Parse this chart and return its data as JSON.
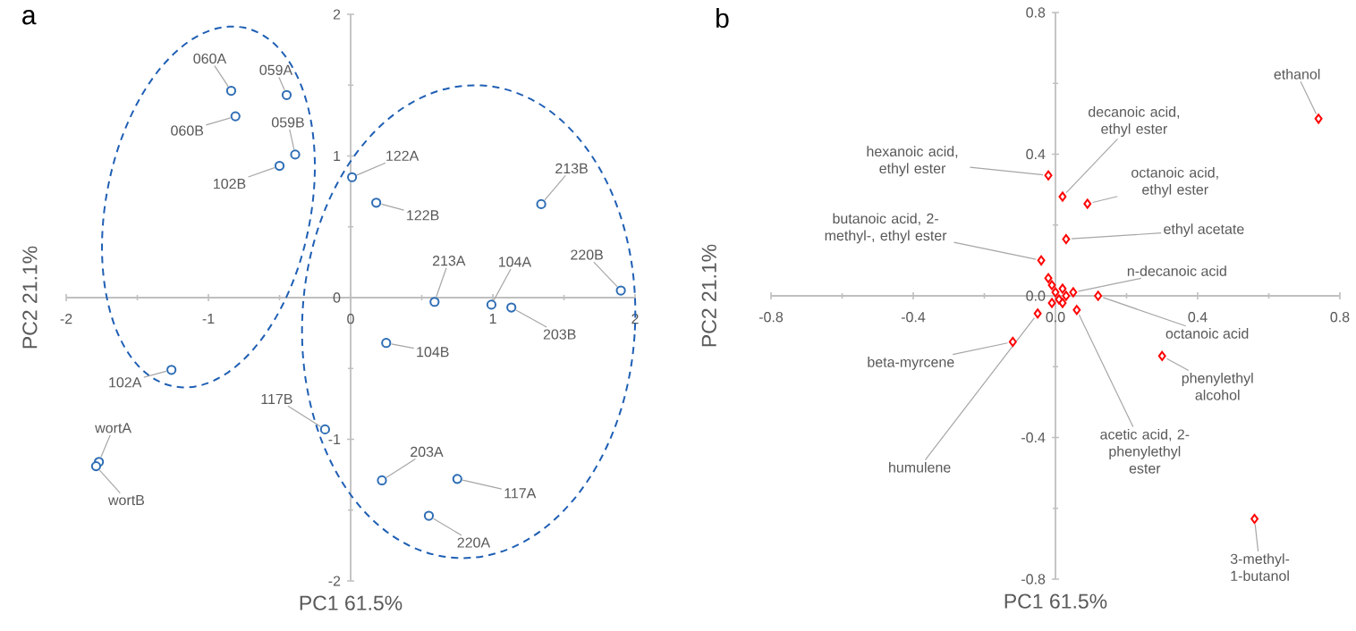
{
  "chart_data": [
    {
      "type": "scatter",
      "title": "a",
      "xlabel": "PC1 61.5%",
      "ylabel": "PC2 21.1%",
      "xlim": [
        -2,
        2
      ],
      "ylim": [
        -2,
        2
      ],
      "xticks": [
        -2,
        -1,
        0,
        1,
        2
      ],
      "yticks": [
        -2,
        -1,
        0,
        1,
        2
      ],
      "marker": "circle",
      "series": [
        {
          "color": "#2e6db4",
          "x": [
            -0.84,
            -0.45,
            -0.81,
            -0.39,
            -0.5,
            0.01,
            0.18,
            1.34,
            0.59,
            0.99,
            1.13,
            1.9,
            0.25,
            -1.26,
            -0.18,
            -1.77,
            -1.79,
            0.22,
            0.75,
            0.55
          ],
          "values": [
            1.46,
            1.43,
            1.28,
            1.01,
            0.93,
            0.85,
            0.67,
            0.66,
            -0.03,
            -0.05,
            -0.07,
            0.05,
            -0.32,
            -0.51,
            -0.93,
            -1.16,
            -1.19,
            -1.29,
            -1.28,
            -1.54
          ]
        }
      ],
      "annotations": [
        {
          "text": "060A",
          "x": -0.84,
          "y": 1.46
        },
        {
          "text": "059A",
          "x": -0.45,
          "y": 1.43
        },
        {
          "text": "060B",
          "x": -0.81,
          "y": 1.28
        },
        {
          "text": "059B",
          "x": -0.39,
          "y": 1.01
        },
        {
          "text": "102B",
          "x": -0.5,
          "y": 0.93
        },
        {
          "text": "122A",
          "x": 0.01,
          "y": 0.85
        },
        {
          "text": "122B",
          "x": 0.18,
          "y": 0.67
        },
        {
          "text": "213B",
          "x": 1.34,
          "y": 0.66
        },
        {
          "text": "213A",
          "x": 0.59,
          "y": -0.03
        },
        {
          "text": "104A",
          "x": 0.99,
          "y": -0.05
        },
        {
          "text": "203B",
          "x": 1.13,
          "y": -0.07
        },
        {
          "text": "220B",
          "x": 1.9,
          "y": 0.05
        },
        {
          "text": "104B",
          "x": 0.25,
          "y": -0.32
        },
        {
          "text": "102A",
          "x": -1.26,
          "y": -0.51
        },
        {
          "text": "117B",
          "x": -0.18,
          "y": -0.93
        },
        {
          "text": "wortA",
          "x": -1.77,
          "y": -1.16
        },
        {
          "text": "wortB",
          "x": -1.79,
          "y": -1.19
        },
        {
          "text": "203A",
          "x": 0.22,
          "y": -1.29
        },
        {
          "text": "117A",
          "x": 0.75,
          "y": -1.28
        },
        {
          "text": "220A",
          "x": 0.55,
          "y": -1.54
        }
      ]
    },
    {
      "type": "scatter",
      "title": "b",
      "xlabel": "PC1 61.5%",
      "ylabel": "PC2 21.1%",
      "xlim": [
        -0.8,
        0.8
      ],
      "ylim": [
        -0.8,
        0.8
      ],
      "xticks": [
        -0.8,
        -0.4,
        {
          "value": 0,
          "label": "0.0"
        },
        0.4,
        0.8
      ],
      "yticks": [
        -0.8,
        -0.4,
        {
          "value": 0,
          "label": "0.0"
        },
        0.4,
        0.8
      ],
      "marker": "diamond",
      "series": [
        {
          "color": "#ff0000",
          "x": [
            0.74,
            -0.02,
            0.02,
            0.09,
            0.03,
            -0.04,
            0.05,
            0.12,
            0.3,
            0.06,
            -0.12,
            -0.05,
            0.56,
            -0.02,
            -0.01,
            0.0,
            0.01,
            0.02,
            -0.01,
            0.02,
            0.03
          ],
          "values": [
            0.5,
            0.34,
            0.28,
            0.26,
            0.16,
            0.1,
            0.01,
            0.0,
            -0.17,
            -0.04,
            -0.13,
            -0.05,
            -0.63,
            0.05,
            0.03,
            0.01,
            -0.01,
            0.02,
            -0.02,
            -0.02,
            0.0
          ]
        }
      ],
      "annotations": [
        {
          "text": "ethanol",
          "x": 0.74,
          "y": 0.5
        },
        {
          "text": "hexanoic acid, ethyl ester",
          "x": -0.02,
          "y": 0.34
        },
        {
          "text": "decanoic acid, ethyl ester",
          "x": 0.02,
          "y": 0.28
        },
        {
          "text": "octanoic acid, ethyl ester",
          "x": 0.09,
          "y": 0.26
        },
        {
          "text": "ethyl acetate",
          "x": 0.03,
          "y": 0.16
        },
        {
          "text": "butanoic acid, 2-methyl-, ethyl ester",
          "x": -0.04,
          "y": 0.1
        },
        {
          "text": "n-decanoic acid",
          "x": 0.05,
          "y": 0.01
        },
        {
          "text": "octanoic acid",
          "x": 0.12,
          "y": 0.0
        },
        {
          "text": "phenylethyl alcohol",
          "x": 0.3,
          "y": -0.17
        },
        {
          "text": "acetic acid, 2-phenylethyl ester",
          "x": 0.06,
          "y": -0.04
        },
        {
          "text": "beta-myrcene",
          "x": -0.12,
          "y": -0.13
        },
        {
          "text": "humulene",
          "x": -0.05,
          "y": -0.05
        },
        {
          "text": "3-methyl-1-butanol",
          "x": 0.56,
          "y": -0.63
        }
      ]
    }
  ]
}
